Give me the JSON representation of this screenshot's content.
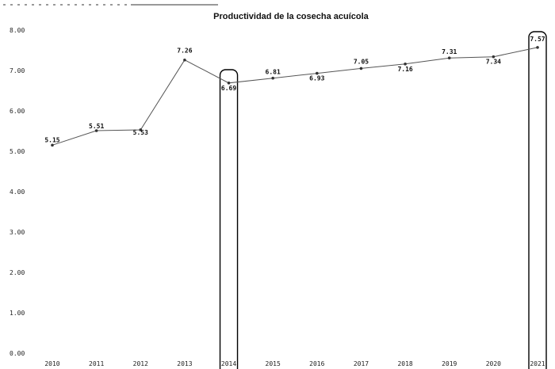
{
  "chart_data": {
    "type": "line",
    "title": "Productividad de la cosecha acuícola",
    "xlabel": "",
    "ylabel": "",
    "categories": [
      "2010",
      "2011",
      "2012",
      "2013",
      "2014",
      "2015",
      "2016",
      "2017",
      "2018",
      "2019",
      "2020",
      "2021"
    ],
    "ylim": [
      0.0,
      8.0
    ],
    "yticks": [
      "0.00",
      "1.00",
      "2.00",
      "3.00",
      "4.00",
      "5.00",
      "6.00",
      "7.00",
      "8.00"
    ],
    "series": [
      {
        "values": [
          5.15,
          5.51,
          5.53,
          7.26,
          6.69,
          6.81,
          6.93,
          7.05,
          7.16,
          7.31,
          7.34,
          7.57
        ],
        "labels": [
          "5.15",
          "5.51",
          "5.53",
          "7.26",
          "6.69",
          "6.81",
          "6.93",
          "7.05",
          "7.16",
          "7.31",
          "7.34",
          "7.57"
        ]
      }
    ],
    "highlighted_categories": [
      "2014",
      "2021"
    ],
    "grid": false,
    "legend": "none",
    "colors": {
      "line": "#555555",
      "marker": "#333333",
      "highlight": "#000000"
    }
  }
}
